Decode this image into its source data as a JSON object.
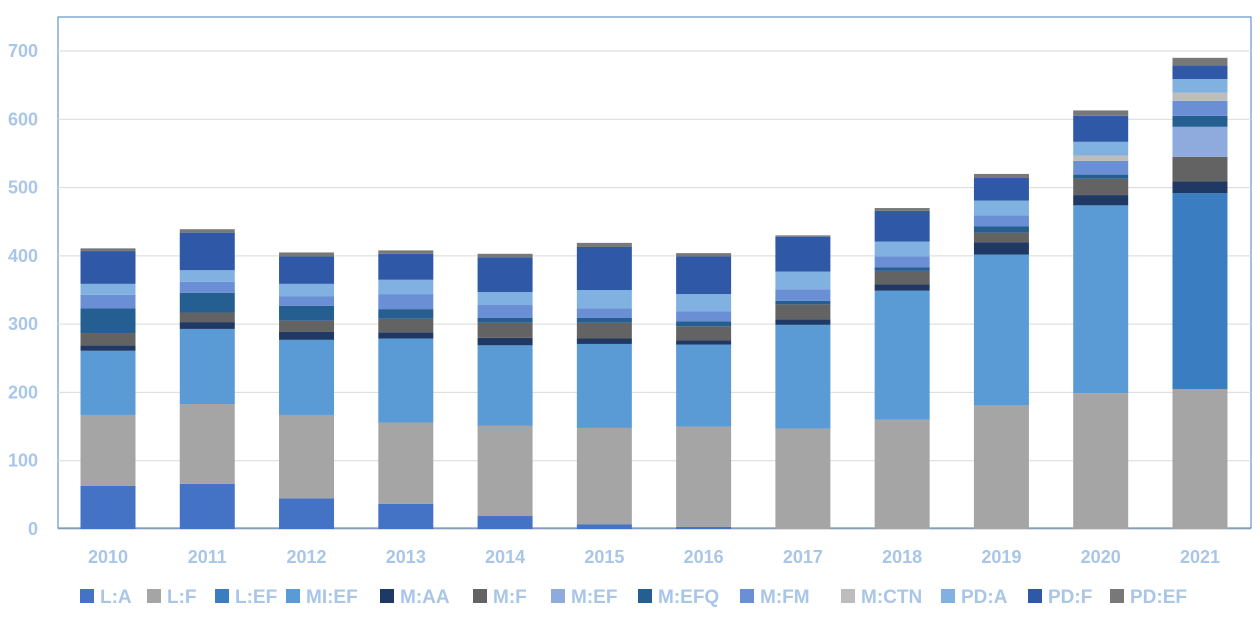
{
  "chart_data": {
    "type": "bar",
    "stacked": true,
    "categories": [
      "2010",
      "2011",
      "2012",
      "2013",
      "2014",
      "2015",
      "2016",
      "2017",
      "2018",
      "2019",
      "2020",
      "2021"
    ],
    "ylim": [
      0,
      700
    ],
    "yticks": [
      0,
      100,
      200,
      300,
      400,
      500,
      600,
      700
    ],
    "grid": true,
    "legend_position": "bottom",
    "series": [
      {
        "name": "L:A",
        "color": "#4472c4",
        "values": [
          63,
          66,
          45,
          37,
          19,
          7,
          3,
          0,
          0,
          0,
          0,
          0
        ]
      },
      {
        "name": "L:F",
        "color": "#a5a5a5",
        "values": [
          104,
          117,
          122,
          119,
          132,
          141,
          147,
          147,
          160,
          181,
          199,
          205
        ]
      },
      {
        "name": "L:EF",
        "color": "#3a7ec1",
        "values": [
          0,
          0,
          0,
          0,
          0,
          0,
          0,
          0,
          0,
          0,
          0,
          287
        ]
      },
      {
        "name": "MI:EF",
        "color": "#5b9bd5",
        "values": [
          94,
          110,
          110,
          123,
          118,
          123,
          120,
          152,
          189,
          221,
          275,
          0
        ]
      },
      {
        "name": "M:AA",
        "color": "#1f3864",
        "values": [
          8,
          10,
          12,
          9,
          11,
          8,
          6,
          8,
          9,
          18,
          15,
          17
        ]
      },
      {
        "name": "M:F",
        "color": "#636363",
        "values": [
          18,
          14,
          16,
          20,
          22,
          23,
          21,
          22,
          20,
          14,
          24,
          36
        ]
      },
      {
        "name": "M:EF",
        "color": "#8faadc",
        "values": [
          0,
          0,
          0,
          0,
          0,
          0,
          0,
          0,
          0,
          0,
          0,
          44
        ]
      },
      {
        "name": "M:EFQ",
        "color": "#255e91",
        "values": [
          36,
          29,
          22,
          14,
          7,
          7,
          7,
          5,
          5,
          9,
          6,
          16
        ]
      },
      {
        "name": "M:FM",
        "color": "#6a8fd4",
        "values": [
          20,
          16,
          14,
          22,
          19,
          14,
          15,
          17,
          16,
          16,
          20,
          22
        ]
      },
      {
        "name": "M:CTN",
        "color": "#bdbdbd",
        "values": [
          0,
          0,
          0,
          0,
          0,
          0,
          0,
          0,
          0,
          0,
          8,
          12
        ]
      },
      {
        "name": "PD:A",
        "color": "#80b1e0",
        "values": [
          16,
          17,
          18,
          21,
          19,
          27,
          25,
          26,
          22,
          22,
          20,
          20
        ]
      },
      {
        "name": "PD:F",
        "color": "#2f58a6",
        "values": [
          48,
          55,
          40,
          38,
          51,
          63,
          55,
          51,
          45,
          33,
          38,
          20
        ]
      },
      {
        "name": "PD:EF",
        "color": "#787878",
        "values": [
          4,
          5,
          6,
          5,
          5,
          6,
          5,
          2,
          4,
          6,
          8,
          11
        ]
      }
    ]
  }
}
